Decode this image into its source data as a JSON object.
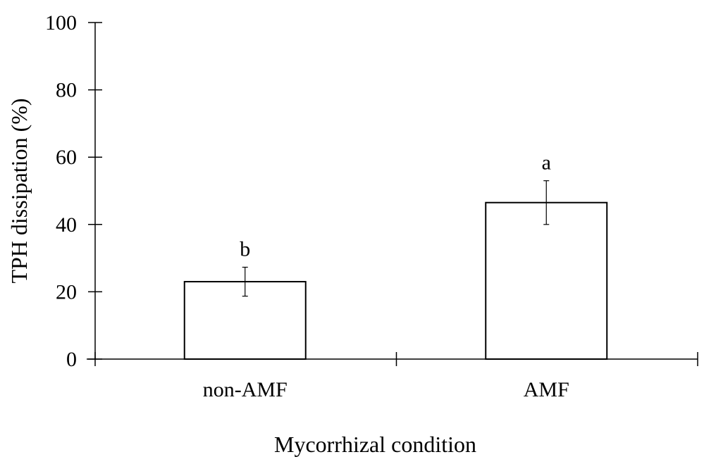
{
  "chart_data": {
    "type": "bar",
    "title": "",
    "xlabel": "Mycorrhizal condition",
    "ylabel": "TPH dissipation (%)",
    "categories": [
      "non-AMF",
      "AMF"
    ],
    "values": [
      23,
      46.5
    ],
    "error": [
      4.3,
      6.5
    ],
    "significance": [
      "b",
      "a"
    ],
    "ylim": [
      0,
      100
    ],
    "yticks": [
      0,
      20,
      40,
      60,
      80,
      100
    ],
    "grid": false,
    "bar_fill": "#ffffff",
    "bar_stroke": "#000000"
  }
}
